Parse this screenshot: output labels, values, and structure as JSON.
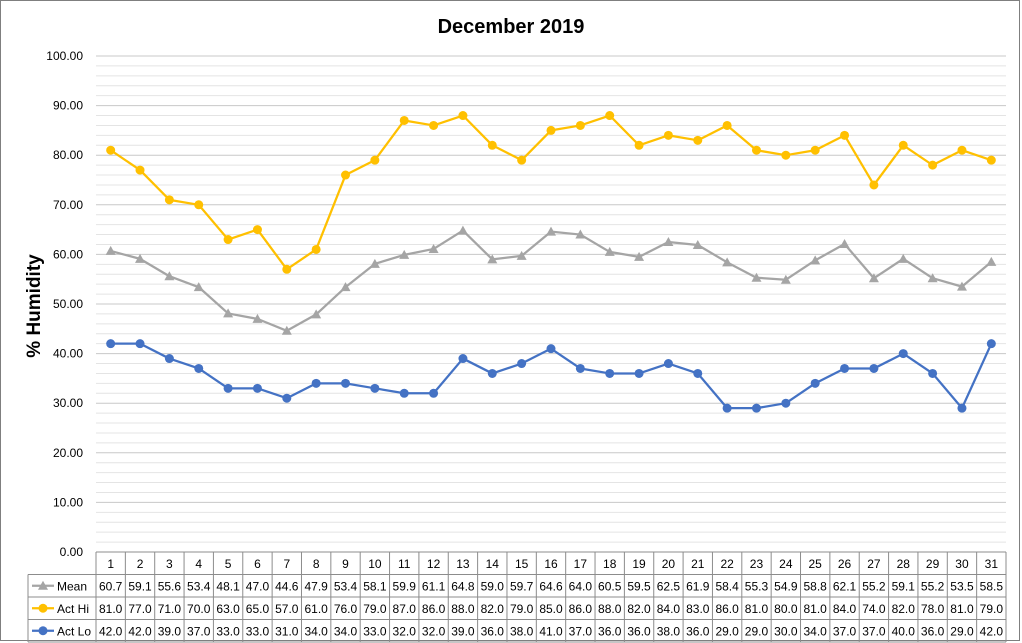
{
  "chart_data": {
    "type": "line",
    "title": "December 2019",
    "xlabel": "",
    "ylabel": "% Humidity",
    "ylim": [
      0,
      100
    ],
    "ytick_step": 10,
    "ytick_labels": [
      "0.00",
      "10.00",
      "20.00",
      "30.00",
      "40.00",
      "50.00",
      "60.00",
      "70.00",
      "80.00",
      "90.00",
      "100.00"
    ],
    "grid_minor_step": 2,
    "grid": true,
    "legend": "data-table-left",
    "categories": [
      "1",
      "2",
      "3",
      "4",
      "5",
      "6",
      "7",
      "8",
      "9",
      "10",
      "11",
      "12",
      "13",
      "14",
      "15",
      "16",
      "17",
      "18",
      "19",
      "20",
      "21",
      "22",
      "23",
      "24",
      "25",
      "26",
      "27",
      "28",
      "29",
      "30",
      "31"
    ],
    "series": [
      {
        "name": "Mean",
        "color": "#a5a5a5",
        "marker": "triangle",
        "values": [
          60.7,
          59.1,
          55.6,
          53.4,
          48.1,
          47.0,
          44.6,
          47.9,
          53.4,
          58.1,
          59.9,
          61.1,
          64.8,
          59.0,
          59.7,
          64.6,
          64.0,
          60.5,
          59.5,
          62.5,
          61.9,
          58.4,
          55.3,
          54.9,
          58.8,
          62.1,
          55.2,
          59.1,
          55.2,
          53.5,
          58.5
        ]
      },
      {
        "name": "Act Hi",
        "color": "#ffc000",
        "marker": "circle",
        "values": [
          81.0,
          77.0,
          71.0,
          70.0,
          63.0,
          65.0,
          57.0,
          61.0,
          76.0,
          79.0,
          87.0,
          86.0,
          88.0,
          82.0,
          79.0,
          85.0,
          86.0,
          88.0,
          82.0,
          84.0,
          83.0,
          86.0,
          81.0,
          80.0,
          81.0,
          84.0,
          74.0,
          82.0,
          78.0,
          81.0,
          79.0
        ]
      },
      {
        "name": "Act Lo",
        "color": "#4472c4",
        "marker": "circle",
        "values": [
          42.0,
          42.0,
          39.0,
          37.0,
          33.0,
          33.0,
          31.0,
          34.0,
          34.0,
          33.0,
          32.0,
          32.0,
          39.0,
          36.0,
          38.0,
          41.0,
          37.0,
          36.0,
          36.0,
          38.0,
          36.0,
          29.0,
          29.0,
          30.0,
          34.0,
          37.0,
          37.0,
          40.0,
          36.0,
          29.0,
          42.0
        ]
      }
    ]
  }
}
